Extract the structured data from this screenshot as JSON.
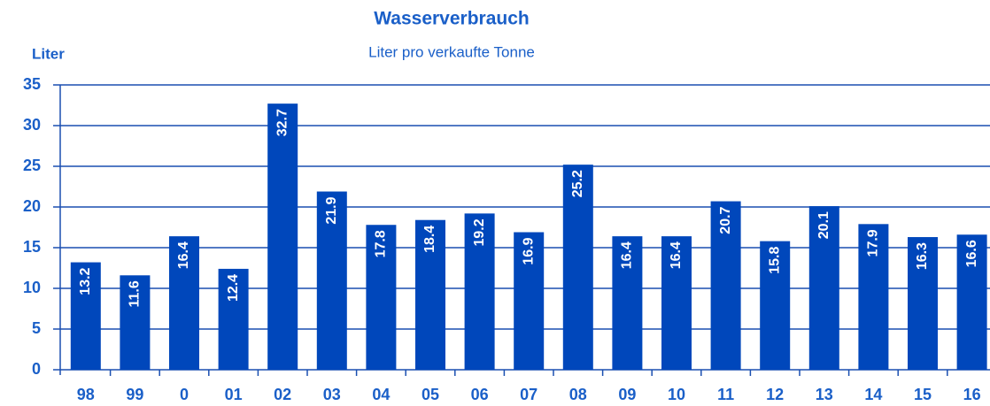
{
  "chart_data": {
    "type": "bar",
    "title": "Wasserverbrauch",
    "subtitle": "Liter pro verkaufte Tonne",
    "y_label": "Liter",
    "categories": [
      "98",
      "99",
      "0",
      "01",
      "02",
      "03",
      "04",
      "05",
      "06",
      "07",
      "08",
      "09",
      "10",
      "11",
      "12",
      "13",
      "14",
      "15",
      "16"
    ],
    "values": [
      13.2,
      11.6,
      16.4,
      12.4,
      32.7,
      21.9,
      17.8,
      18.4,
      19.2,
      16.9,
      25.2,
      16.4,
      16.4,
      20.7,
      15.8,
      20.1,
      17.9,
      16.3,
      16.6
    ],
    "color": "#0047bb",
    "ylim": [
      0,
      35
    ],
    "yticks": [
      0,
      5,
      10,
      15,
      20,
      25,
      30,
      35
    ],
    "grid": true
  }
}
